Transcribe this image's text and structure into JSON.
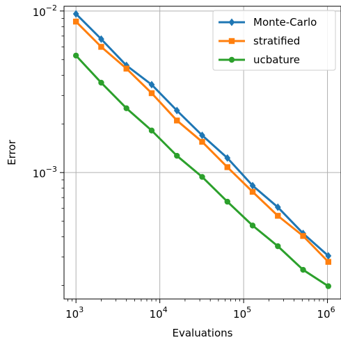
{
  "chart_data": {
    "type": "line",
    "xlabel": "Evaluations",
    "ylabel": "Error",
    "x_scale": "log",
    "y_scale": "log",
    "xlim": [
      720,
      1450000
    ],
    "ylim": [
      0.000165,
      0.0107
    ],
    "grid": true,
    "legend_position": "top-right",
    "x_ticks": [
      {
        "value": 1000,
        "base": "10",
        "exp": "3"
      },
      {
        "value": 10000,
        "base": "10",
        "exp": "4"
      },
      {
        "value": 100000,
        "base": "10",
        "exp": "5"
      },
      {
        "value": 1000000,
        "base": "10",
        "exp": "6"
      }
    ],
    "y_ticks": [
      {
        "value": 0.001,
        "base": "10",
        "exp": "−3"
      },
      {
        "value": 0.01,
        "base": "10",
        "exp": "−2"
      }
    ],
    "x": [
      1000,
      2000,
      4000,
      8000,
      16000,
      32000,
      64000,
      128000,
      256000,
      512000,
      1024000
    ],
    "series": [
      {
        "name": "Monte-Carlo",
        "color": "#1f77b4",
        "marker": "diamond",
        "values": [
          0.0096,
          0.0067,
          0.0046,
          0.0035,
          0.00242,
          0.0017,
          0.00123,
          0.00083,
          0.00061,
          0.00042,
          0.000305
        ]
      },
      {
        "name": "stratified",
        "color": "#ff7f0e",
        "marker": "square",
        "values": [
          0.0086,
          0.006,
          0.0044,
          0.0031,
          0.0021,
          0.00155,
          0.00108,
          0.00076,
          0.00054,
          0.000405,
          0.00028
        ]
      },
      {
        "name": "ucbature",
        "color": "#2ca02c",
        "marker": "circle",
        "values": [
          0.0053,
          0.0036,
          0.0025,
          0.00182,
          0.00127,
          0.00094,
          0.00066,
          0.00047,
          0.00035,
          0.00025,
          0.000198
        ]
      }
    ]
  }
}
